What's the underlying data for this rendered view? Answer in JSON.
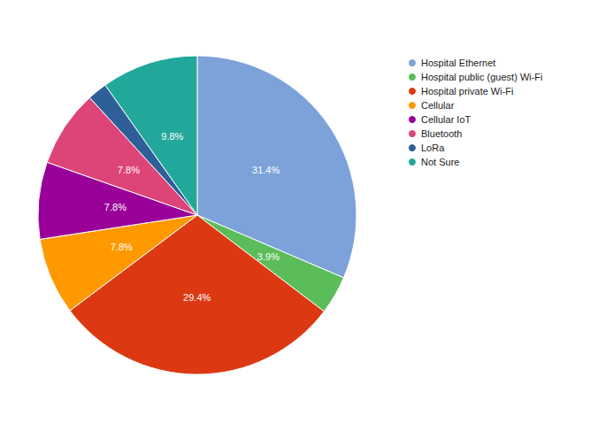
{
  "chart_data": {
    "type": "pie",
    "categories": [
      "Hospital Ethernet",
      "Hospital public (guest) Wi-Fi",
      "Hospital private Wi-Fi",
      "Cellular",
      "Cellular IoT",
      "Bluetooth",
      "LoRa",
      "Not Sure"
    ],
    "values": [
      31.4,
      3.9,
      29.4,
      7.8,
      7.8,
      7.8,
      2.0,
      9.8
    ],
    "value_labels": [
      "31.4%",
      "3.9%",
      "29.4%",
      "7.8%",
      "7.8%",
      "7.8%",
      null,
      "9.8%"
    ],
    "colors": [
      "#7ca2d9",
      "#5bbd5a",
      "#dc3912",
      "#ff9900",
      "#990099",
      "#dd4477",
      "#2f5f98",
      "#22a89a"
    ],
    "data_labels": true,
    "legend": "top-right"
  }
}
